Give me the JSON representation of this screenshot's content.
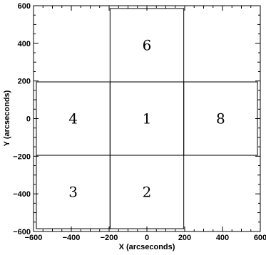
{
  "diagram": {
    "xlabel": "X (arcseconds)",
    "ylabel": "Y (arcseconds)",
    "xlim": [
      -600,
      600
    ],
    "ylim": [
      -600,
      600
    ],
    "x_ticks": [
      -600,
      -400,
      -200,
      0,
      200,
      400,
      600
    ],
    "y_ticks": [
      -600,
      -400,
      -200,
      0,
      200,
      400,
      600
    ],
    "fields": [
      {
        "label": "6",
        "x0": -195,
        "x1": 195,
        "y0": 195,
        "y1": 585
      },
      {
        "label": "4",
        "x0": -585,
        "x1": -195,
        "y0": -195,
        "y1": 195
      },
      {
        "label": "1",
        "x0": -195,
        "x1": 195,
        "y0": -195,
        "y1": 195
      },
      {
        "label": "8",
        "x0": 195,
        "x1": 585,
        "y0": -195,
        "y1": 195
      },
      {
        "label": "3",
        "x0": -585,
        "x1": -195,
        "y0": -585,
        "y1": -195
      },
      {
        "label": "2",
        "x0": -195,
        "x1": 195,
        "y0": -585,
        "y1": -195
      }
    ]
  }
}
